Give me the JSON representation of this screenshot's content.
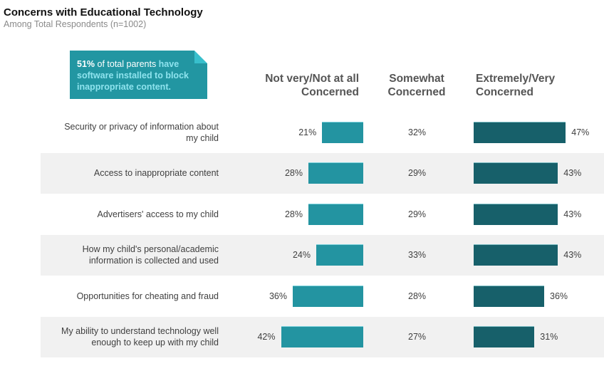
{
  "header": {
    "title": "Concerns with Educational Technology",
    "subtitle": "Among Total Respondents (n=1002)"
  },
  "callout": {
    "highlight": "51%",
    "text_plain": " of total parents ",
    "text_cyan": "have software installed to block inappropriate content."
  },
  "colors": {
    "not_concerned_bar": "#2394a1",
    "very_concerned_bar": "#17606a",
    "callout_bg": "#2296a2",
    "row_shade": "#f1f1f1"
  },
  "chart_data": {
    "type": "bar",
    "title": "Concerns with Educational Technology",
    "subtitle": "Among Total Respondents (n=1002)",
    "categories": [
      "Security or privacy of information about my child",
      "Access to inappropriate content",
      "Advertisers' access to my child",
      "How my child's personal/academic information is collected and used",
      "Opportunities for cheating and fraud",
      "My ability to understand technology well enough to keep up with my child"
    ],
    "series": [
      {
        "name": "Not very/Not at all Concerned",
        "values": [
          21,
          28,
          28,
          24,
          36,
          42
        ],
        "display": "bar-left"
      },
      {
        "name": "Somewhat Concerned",
        "values": [
          32,
          29,
          29,
          33,
          28,
          27
        ],
        "display": "text"
      },
      {
        "name": "Extremely/Very Concerned",
        "values": [
          47,
          43,
          43,
          43,
          36,
          31
        ],
        "display": "bar-right"
      }
    ],
    "unit": "%",
    "xlim": [
      0,
      100
    ],
    "legend": "column headers at top"
  },
  "columns": {
    "left_line1": "Not very/Not at all",
    "left_line2": "Concerned",
    "mid_line1": "Somewhat",
    "mid_line2": "Concerned",
    "right_line1": "Extremely/Very",
    "right_line2": "Concerned"
  },
  "rows": [
    {
      "label_line1": "Security or privacy of information about",
      "label_line2": "my child",
      "not": "21%",
      "some": "32%",
      "very": "47%"
    },
    {
      "label_line1": "Access to inappropriate content",
      "label_line2": "",
      "not": "28%",
      "some": "29%",
      "very": "43%"
    },
    {
      "label_line1": "Advertisers' access to my child",
      "label_line2": "",
      "not": "28%",
      "some": "29%",
      "very": "43%"
    },
    {
      "label_line1": "How my child's personal/academic",
      "label_line2": "information is collected and used",
      "not": "24%",
      "some": "33%",
      "very": "43%"
    },
    {
      "label_line1": "Opportunities for cheating and fraud",
      "label_line2": "",
      "not": "36%",
      "some": "28%",
      "very": "36%"
    },
    {
      "label_line1": "My ability to understand technology well",
      "label_line2": "enough to keep up with my child",
      "not": "42%",
      "some": "27%",
      "very": "31%"
    }
  ]
}
